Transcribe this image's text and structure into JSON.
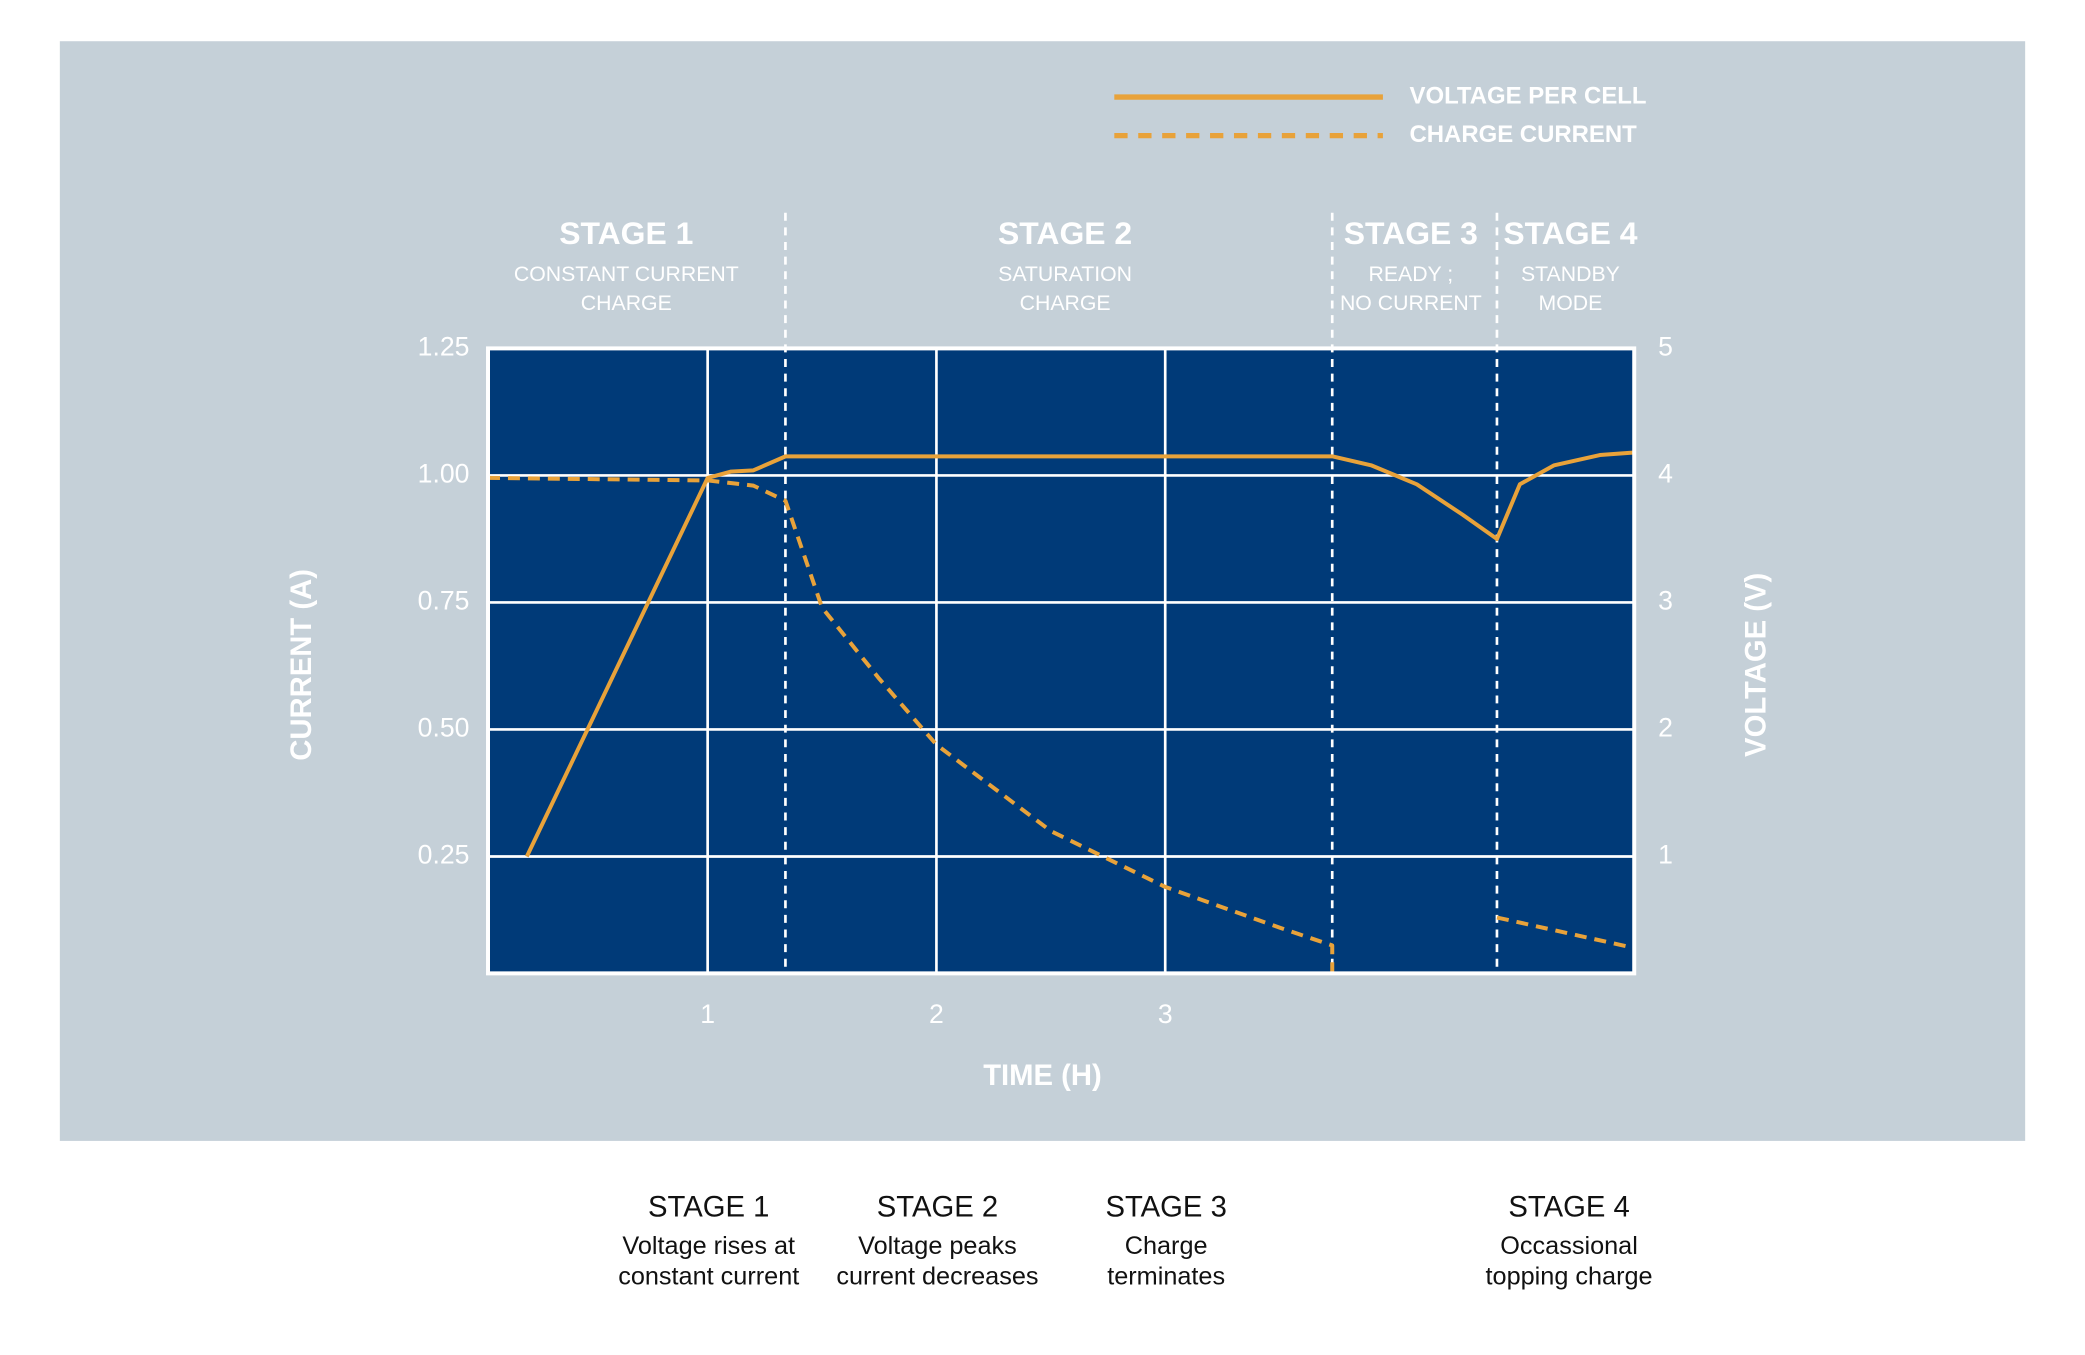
{
  "chart_data": {
    "type": "line",
    "x_label": "TIME (H)",
    "y_label": "CURRENT (A)",
    "y2_label": "VOLTAGE (V)",
    "xlim": [
      0.04,
      5.05
    ],
    "xticks": [
      1,
      2,
      3
    ],
    "ylim": [
      0.02,
      1.25
    ],
    "yticks": [
      0.25,
      {
        "value": 0.5,
        "label": "0.50"
      },
      0.75,
      {
        "value": 1,
        "label": "1.00"
      },
      1.25
    ],
    "y2lim": [
      0.08,
      5
    ],
    "y2ticks": [
      1,
      2,
      3,
      4,
      5
    ],
    "grid": true,
    "legend": "top-right",
    "stage_boundaries": [
      1.34,
      3.73,
      4.45
    ],
    "stage_labels": [
      {
        "title": "STAGE 1",
        "subtitle": [
          "CONSTANT CURRENT",
          "CHARGE"
        ]
      },
      {
        "title": "STAGE 2",
        "subtitle": [
          "SATURATION",
          "CHARGE"
        ]
      },
      {
        "title": "STAGE 3",
        "subtitle": [
          "READY ;",
          "NO CURRENT"
        ]
      },
      {
        "title": "STAGE 4",
        "subtitle": [
          "STANDBY",
          "MODE"
        ]
      }
    ],
    "stage_notes": [
      {
        "title": "STAGE 1",
        "lines": [
          "Voltage rises at",
          "constant current"
        ]
      },
      {
        "title": "STAGE 2",
        "lines": [
          "Voltage peaks",
          "current decreases"
        ]
      },
      {
        "title": "STAGE 3",
        "lines": [
          "Charge",
          "terminates"
        ]
      },
      {
        "title": "STAGE 4",
        "lines": [
          "Occassional",
          "topping charge"
        ]
      }
    ],
    "series": [
      {
        "name": "VOLTAGE PER CELL",
        "color": "#e8a23a",
        "style": "solid",
        "axis": "y2",
        "x": [
          0.21,
          1.0,
          1.1,
          1.2,
          1.34,
          2.0,
          3.0,
          3.73,
          3.9,
          4.1,
          4.3,
          4.45,
          4.55,
          4.7,
          4.9,
          5.05
        ],
        "values": [
          1.0,
          3.98,
          4.03,
          4.04,
          4.15,
          4.15,
          4.15,
          4.15,
          4.08,
          3.93,
          3.69,
          3.5,
          3.93,
          4.08,
          4.16,
          4.18
        ]
      },
      {
        "name": "CHARGE CURRENT",
        "color": "#e8a23a",
        "style": "dashed",
        "axis": "y",
        "x": [
          0.04,
          1.0,
          1.2,
          1.34,
          1.5,
          1.75,
          2.0,
          2.5,
          3.0,
          3.5,
          3.73,
          3.73,
          4.0,
          4.45,
          5.05
        ],
        "values": [
          0.995,
          0.99,
          0.98,
          0.95,
          0.74,
          0.6,
          0.47,
          0.3,
          0.19,
          0.11,
          0.075,
          0.02,
          null,
          0.13,
          0.07
        ]
      }
    ]
  }
}
